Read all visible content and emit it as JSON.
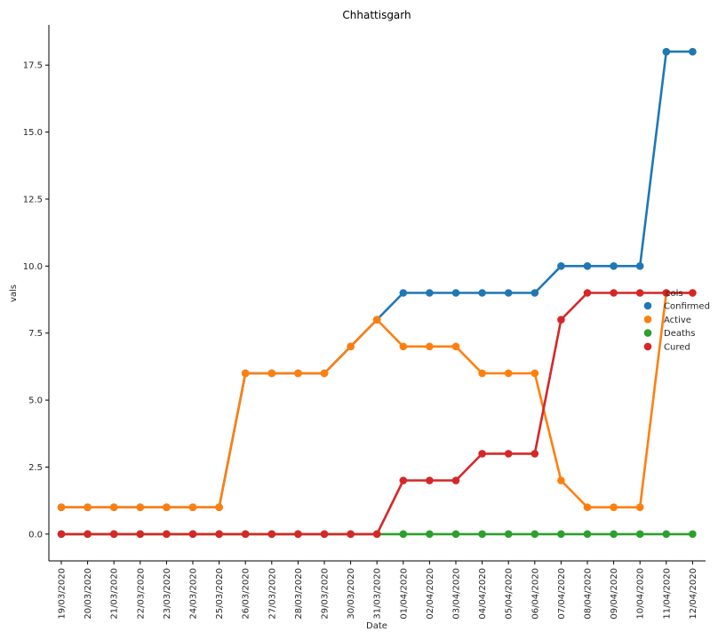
{
  "chart_data": {
    "type": "line",
    "title": "Chhattisgarh",
    "xlabel": "Date",
    "ylabel": "vals",
    "categories": [
      "19/03/2020",
      "20/03/2020",
      "21/03/2020",
      "22/03/2020",
      "23/03/2020",
      "24/03/2020",
      "25/03/2020",
      "26/03/2020",
      "27/03/2020",
      "28/03/2020",
      "29/03/2020",
      "30/03/2020",
      "31/03/2020",
      "01/04/2020",
      "02/04/2020",
      "03/04/2020",
      "04/04/2020",
      "05/04/2020",
      "06/04/2020",
      "07/04/2020",
      "08/04/2020",
      "09/04/2020",
      "10/04/2020",
      "11/04/2020",
      "12/04/2020"
    ],
    "ylim": [
      -1,
      19
    ],
    "yticks": [
      "0.0",
      "2.5",
      "5.0",
      "7.5",
      "10.0",
      "12.5",
      "15.0",
      "17.5"
    ],
    "legend_title": "cols",
    "legend_position": "right",
    "grid": false,
    "series": [
      {
        "name": "Confirmed",
        "color": "#1f77b4",
        "values": [
          1,
          1,
          1,
          1,
          1,
          1,
          1,
          6,
          6,
          6,
          6,
          7,
          8,
          9,
          9,
          9,
          9,
          9,
          9,
          10,
          10,
          10,
          10,
          18,
          18
        ]
      },
      {
        "name": "Active",
        "color": "#ff7f0e",
        "values": [
          1,
          1,
          1,
          1,
          1,
          1,
          1,
          6,
          6,
          6,
          6,
          7,
          8,
          7,
          7,
          7,
          6,
          6,
          6,
          2,
          1,
          1,
          1,
          9,
          9
        ]
      },
      {
        "name": "Deaths",
        "color": "#2ca02c",
        "values": [
          0,
          0,
          0,
          0,
          0,
          0,
          0,
          0,
          0,
          0,
          0,
          0,
          0,
          0,
          0,
          0,
          0,
          0,
          0,
          0,
          0,
          0,
          0,
          0,
          0
        ]
      },
      {
        "name": "Cured",
        "color": "#d62728",
        "values": [
          0,
          0,
          0,
          0,
          0,
          0,
          0,
          0,
          0,
          0,
          0,
          0,
          0,
          2,
          2,
          2,
          3,
          3,
          3,
          8,
          9,
          9,
          9,
          9,
          9
        ]
      }
    ]
  }
}
